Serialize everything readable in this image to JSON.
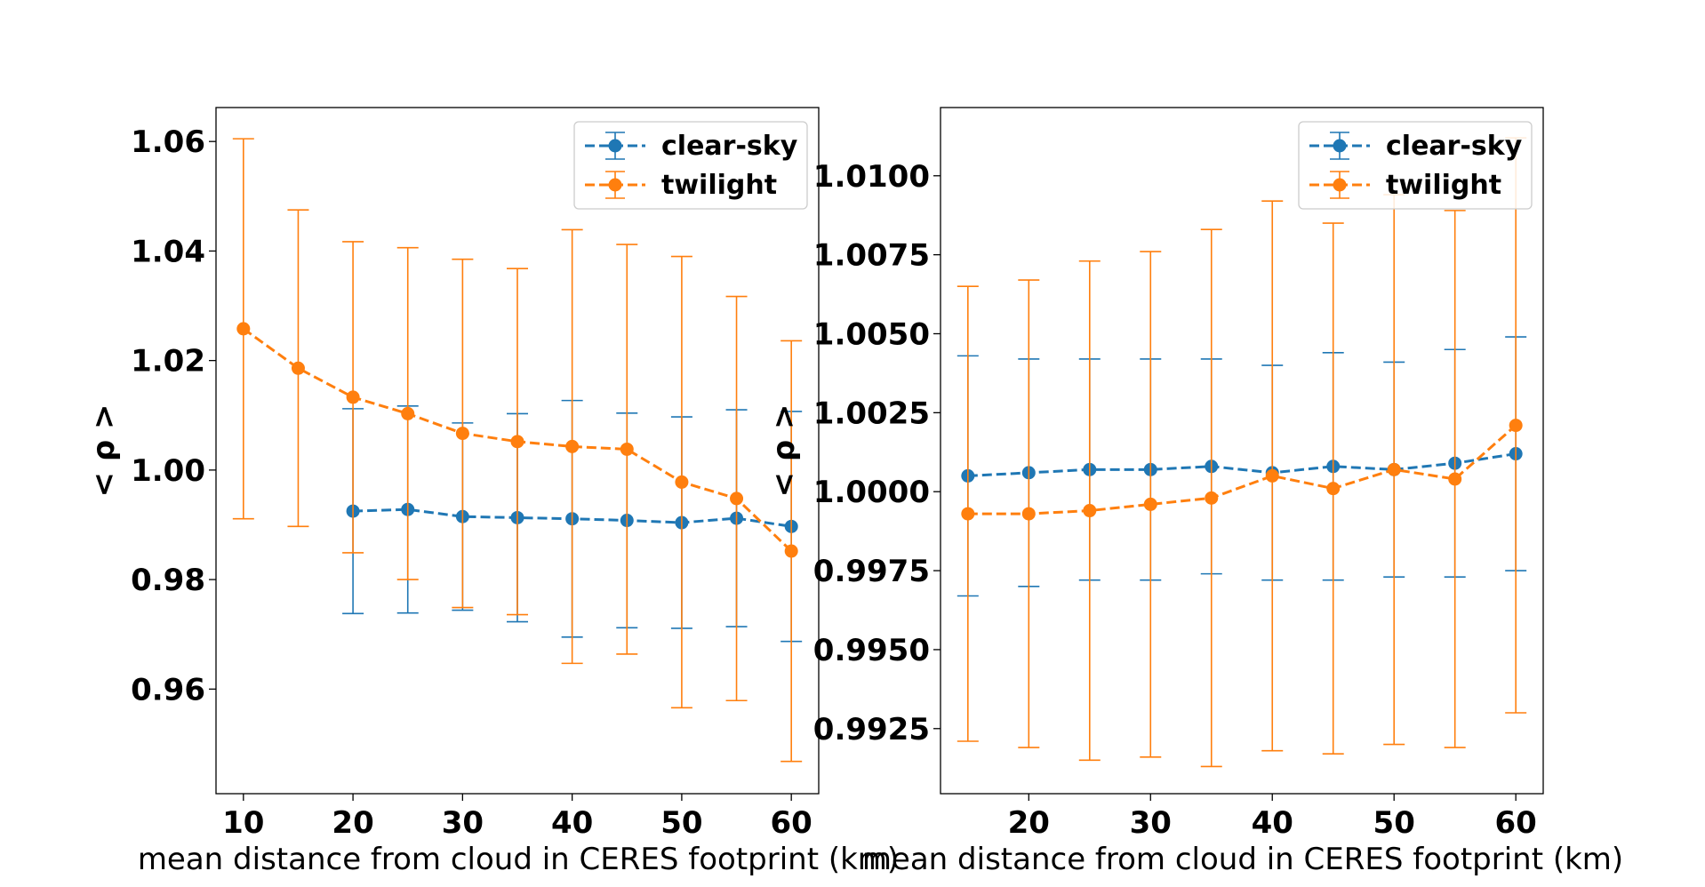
{
  "chart_data": [
    {
      "type": "line",
      "xlabel": "mean distance from cloud in CERES footprint (km)",
      "ylabel": "< ρ >",
      "xlim": [
        7.5,
        62.5
      ],
      "ylim": [
        0.9409,
        1.0662
      ],
      "xticks": [
        10,
        20,
        30,
        40,
        50,
        60
      ],
      "yticks": [
        0.96,
        0.98,
        1.0,
        1.02,
        1.04,
        1.06
      ],
      "ytick_labels": [
        "0.96",
        "0.98",
        "1.00",
        "1.02",
        "1.04",
        "1.06"
      ],
      "grid": false,
      "legend": "top-right",
      "series": [
        {
          "name": "clear-sky",
          "color": "#1f77b4",
          "x": [
            20,
            25,
            30,
            35,
            40,
            45,
            50,
            55,
            60
          ],
          "y": [
            0.9925,
            0.9928,
            0.9915,
            0.9913,
            0.9911,
            0.9908,
            0.9904,
            0.9912,
            0.9897
          ],
          "err": [
            0.0187,
            0.0189,
            0.0171,
            0.019,
            0.0216,
            0.0196,
            0.0193,
            0.0198,
            0.021
          ]
        },
        {
          "name": "twilight",
          "color": "#ff7f0e",
          "x": [
            10,
            15,
            20,
            25,
            30,
            35,
            40,
            45,
            50,
            55,
            60
          ],
          "y": [
            1.0258,
            1.0186,
            1.0133,
            1.0103,
            1.0067,
            1.0052,
            1.0043,
            1.0038,
            0.9978,
            0.9948,
            0.9852
          ],
          "err": [
            0.0347,
            0.0289,
            0.0284,
            0.0303,
            0.0318,
            0.0316,
            0.0396,
            0.0374,
            0.0412,
            0.0369,
            0.0384
          ]
        }
      ]
    },
    {
      "type": "line",
      "xlabel": "mean distance from cloud in CERES footprint (km)",
      "ylabel": "< ρ >",
      "xlim": [
        12.75,
        62.25
      ],
      "ylim": [
        0.99044,
        1.01216
      ],
      "xticks": [
        20,
        30,
        40,
        50,
        60
      ],
      "yticks": [
        0.9925,
        0.995,
        0.9975,
        1.0,
        1.0025,
        1.005,
        1.0075,
        1.01
      ],
      "ytick_labels": [
        "0.9925",
        "0.9950",
        "0.9975",
        "1.0000",
        "1.0025",
        "1.0050",
        "1.0075",
        "1.0100"
      ],
      "grid": false,
      "legend": "top-right",
      "series": [
        {
          "name": "clear-sky",
          "color": "#1f77b4",
          "x": [
            15,
            20,
            25,
            30,
            35,
            40,
            45,
            50,
            55,
            60
          ],
          "y": [
            1.0005,
            1.0006,
            1.0007,
            1.0007,
            1.0008,
            1.0006,
            1.0008,
            1.0007,
            1.0009,
            1.0012
          ],
          "err": [
            0.0038,
            0.0036,
            0.0035,
            0.0035,
            0.0034,
            0.0034,
            0.0036,
            0.0034,
            0.0036,
            0.0037
          ]
        },
        {
          "name": "twilight",
          "color": "#ff7f0e",
          "x": [
            15,
            20,
            25,
            30,
            35,
            40,
            45,
            50,
            55,
            60
          ],
          "y": [
            0.9993,
            0.9993,
            0.9994,
            0.9996,
            0.9998,
            1.0005,
            1.0001,
            1.0007,
            1.0004,
            1.0021
          ],
          "err": [
            0.0072,
            0.0074,
            0.0079,
            0.008,
            0.0085,
            0.0087,
            0.0084,
            0.0087,
            0.0085,
            0.0091
          ]
        }
      ]
    }
  ]
}
